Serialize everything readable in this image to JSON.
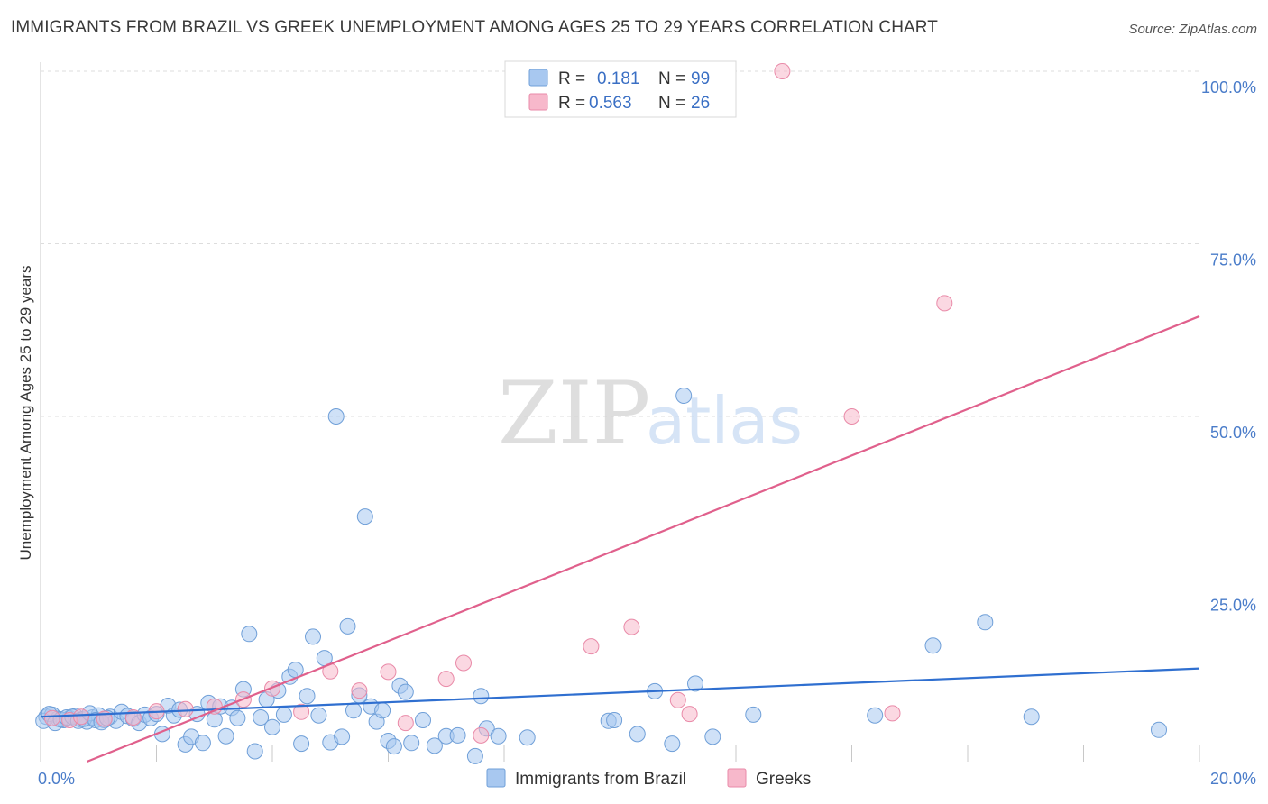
{
  "title": "IMMIGRANTS FROM BRAZIL VS GREEK UNEMPLOYMENT AMONG AGES 25 TO 29 YEARS CORRELATION CHART",
  "source": "Source: ZipAtlas.com",
  "watermark": {
    "zip": "ZIP",
    "atlas": "atlas"
  },
  "colors": {
    "blue_fill": "#a8c8f0",
    "blue_stroke": "#6f9fd8",
    "blue_line": "#2f6fd0",
    "pink_fill": "#f7b8cb",
    "pink_stroke": "#e98aa8",
    "pink_line": "#e0608c",
    "grid": "#dddddd",
    "tick_text": "#4a7cc9"
  },
  "legend": {
    "rows": [
      {
        "series": "blue",
        "r_label": "R =",
        "r_value": "0.181",
        "n_label": "N =",
        "n_value": "99"
      },
      {
        "series": "pink",
        "r_label": "R =",
        "r_value": "0.563",
        "n_label": "N =",
        "n_value": "26"
      }
    ]
  },
  "bottom_legend": [
    {
      "series": "blue",
      "label": "Immigrants from Brazil"
    },
    {
      "series": "pink",
      "label": "Greeks"
    }
  ],
  "chart_data": {
    "type": "scatter",
    "title": "IMMIGRANTS FROM BRAZIL VS GREEK UNEMPLOYMENT AMONG AGES 25 TO 29 YEARS CORRELATION CHART",
    "xlabel": "",
    "ylabel": "Unemployment Among Ages 25 to 29 years",
    "xlim": [
      0,
      20
    ],
    "ylim": [
      0,
      100
    ],
    "x_tick_labels": [
      {
        "value": 0,
        "label": "0.0%"
      },
      {
        "value": 20,
        "label": "20.0%"
      }
    ],
    "y_tick_labels": [
      {
        "value": 100,
        "label": "100.0%"
      },
      {
        "value": 75,
        "label": "75.0%"
      },
      {
        "value": 50,
        "label": "50.0%"
      },
      {
        "value": 25,
        "label": "25.0%"
      }
    ],
    "grid": true,
    "legend_position": "top-center",
    "series": [
      {
        "name": "Immigrants from Brazil",
        "color": "blue",
        "r": 0.181,
        "n": 99,
        "trend": {
          "x": [
            0,
            20
          ],
          "y": [
            6.5,
            13.5
          ]
        },
        "points": [
          [
            0.1,
            6.5
          ],
          [
            0.2,
            6.8
          ],
          [
            0.3,
            6.2
          ],
          [
            0.4,
            6.0
          ],
          [
            0.5,
            6.3
          ],
          [
            0.6,
            6.6
          ],
          [
            0.7,
            6.1
          ],
          [
            0.8,
            5.8
          ],
          [
            0.9,
            6.4
          ],
          [
            1.0,
            6.7
          ],
          [
            1.1,
            6.0
          ],
          [
            1.2,
            6.5
          ],
          [
            1.3,
            5.9
          ],
          [
            1.4,
            7.2
          ],
          [
            1.5,
            6.6
          ],
          [
            1.6,
            6.2
          ],
          [
            1.7,
            5.6
          ],
          [
            1.8,
            6.8
          ],
          [
            1.9,
            6.3
          ],
          [
            2.0,
            6.9
          ],
          [
            2.1,
            4.0
          ],
          [
            2.2,
            8.1
          ],
          [
            2.3,
            6.7
          ],
          [
            2.4,
            7.5
          ],
          [
            2.5,
            2.5
          ],
          [
            2.6,
            3.6
          ],
          [
            2.7,
            6.9
          ],
          [
            2.8,
            2.7
          ],
          [
            2.9,
            8.5
          ],
          [
            3.0,
            6.1
          ],
          [
            3.1,
            8.0
          ],
          [
            3.2,
            3.7
          ],
          [
            3.3,
            7.8
          ],
          [
            3.4,
            6.3
          ],
          [
            3.5,
            10.5
          ],
          [
            3.6,
            18.5
          ],
          [
            3.7,
            1.5
          ],
          [
            3.8,
            6.4
          ],
          [
            3.9,
            9.0
          ],
          [
            4.0,
            5.0
          ],
          [
            4.1,
            10.3
          ],
          [
            4.2,
            6.8
          ],
          [
            4.3,
            12.3
          ],
          [
            4.4,
            13.3
          ],
          [
            4.5,
            2.6
          ],
          [
            4.6,
            9.5
          ],
          [
            4.7,
            18.1
          ],
          [
            4.8,
            6.7
          ],
          [
            4.9,
            15.0
          ],
          [
            5.0,
            2.8
          ],
          [
            5.1,
            50.0
          ],
          [
            5.2,
            3.6
          ],
          [
            5.3,
            19.6
          ],
          [
            5.4,
            7.4
          ],
          [
            5.5,
            9.6
          ],
          [
            5.6,
            35.5
          ],
          [
            5.7,
            8.0
          ],
          [
            5.8,
            5.8
          ],
          [
            5.9,
            7.4
          ],
          [
            6.0,
            3.0
          ],
          [
            6.1,
            2.2
          ],
          [
            6.2,
            11.0
          ],
          [
            6.3,
            10.1
          ],
          [
            6.4,
            2.7
          ],
          [
            6.6,
            6.0
          ],
          [
            6.8,
            2.3
          ],
          [
            7.0,
            3.7
          ],
          [
            7.2,
            3.8
          ],
          [
            7.5,
            0.8
          ],
          [
            7.6,
            9.5
          ],
          [
            7.7,
            4.8
          ],
          [
            7.9,
            3.7
          ],
          [
            8.4,
            3.5
          ],
          [
            9.8,
            5.9
          ],
          [
            9.9,
            6.0
          ],
          [
            10.3,
            4.0
          ],
          [
            10.6,
            10.2
          ],
          [
            10.9,
            2.6
          ],
          [
            11.1,
            53.0
          ],
          [
            11.3,
            11.3
          ],
          [
            11.6,
            3.6
          ],
          [
            12.3,
            6.8
          ],
          [
            14.4,
            6.7
          ],
          [
            15.4,
            16.8
          ],
          [
            16.3,
            20.2
          ],
          [
            17.1,
            6.5
          ],
          [
            19.3,
            4.6
          ],
          [
            0.05,
            5.9
          ],
          [
            0.15,
            6.9
          ],
          [
            0.25,
            5.6
          ],
          [
            0.35,
            6.1
          ],
          [
            0.45,
            6.4
          ],
          [
            0.55,
            6.5
          ],
          [
            0.65,
            5.9
          ],
          [
            0.75,
            6.2
          ],
          [
            0.85,
            7.0
          ],
          [
            0.95,
            6.0
          ],
          [
            1.05,
            5.7
          ],
          [
            1.15,
            6.3
          ]
        ]
      },
      {
        "name": "Greeks",
        "color": "pink",
        "r": 0.563,
        "n": 26,
        "trend": {
          "x": [
            0.8,
            20
          ],
          "y": [
            0,
            64.5
          ]
        },
        "points": [
          [
            0.2,
            6.3
          ],
          [
            0.5,
            6.0
          ],
          [
            0.7,
            6.5
          ],
          [
            1.1,
            6.2
          ],
          [
            1.6,
            6.4
          ],
          [
            2.0,
            7.3
          ],
          [
            2.5,
            7.6
          ],
          [
            3.0,
            8.0
          ],
          [
            3.5,
            9.0
          ],
          [
            4.0,
            10.6
          ],
          [
            4.5,
            7.2
          ],
          [
            5.0,
            13.1
          ],
          [
            5.5,
            10.3
          ],
          [
            6.0,
            13.0
          ],
          [
            6.3,
            5.6
          ],
          [
            7.0,
            12.0
          ],
          [
            7.3,
            14.3
          ],
          [
            7.6,
            3.8
          ],
          [
            9.5,
            16.7
          ],
          [
            10.2,
            19.5
          ],
          [
            11.0,
            8.9
          ],
          [
            11.2,
            6.9
          ],
          [
            12.8,
            100.0
          ],
          [
            14.0,
            50.0
          ],
          [
            14.7,
            7.0
          ],
          [
            15.6,
            66.4
          ]
        ]
      }
    ]
  }
}
